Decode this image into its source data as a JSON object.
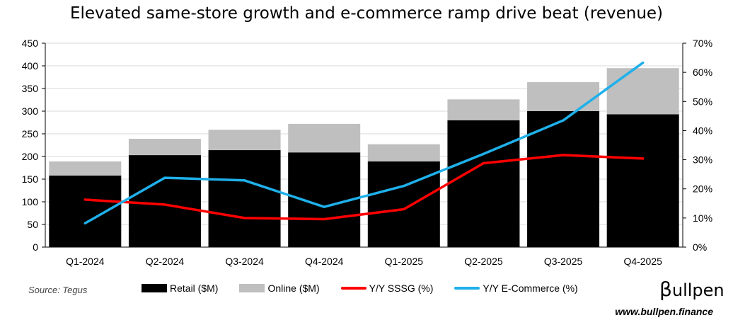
{
  "title": "Elevated same-store growth and e-commerce ramp drive beat (revenue)",
  "source": "Source: Tegus",
  "brand": {
    "logo_letter": "β",
    "logo_rest": "ullpen",
    "website": "www.bullpen.finance"
  },
  "chart_data": {
    "type": "bar",
    "stacked": true,
    "categories": [
      "Q1-2024",
      "Q2-2024",
      "Q3-2024",
      "Q4-2024",
      "Q1-2025",
      "Q2-2025",
      "Q3-2025",
      "Q4-2025"
    ],
    "series": [
      {
        "name": "Retail ($M)",
        "kind": "bar",
        "axis": "left",
        "color": "#000000",
        "values": [
          158,
          203,
          214,
          209,
          189,
          280,
          300,
          293
        ]
      },
      {
        "name": "Online ($M)",
        "kind": "bar",
        "axis": "left",
        "color": "#bfbfbf",
        "values": [
          31,
          36,
          45,
          63,
          38,
          46,
          64,
          102
        ]
      },
      {
        "name": "Y/Y SSSG (%)",
        "kind": "line",
        "axis": "right",
        "color": "#ff0000",
        "values": [
          16.3,
          14.6,
          10.0,
          9.6,
          13.0,
          28.8,
          31.6,
          30.4
        ]
      },
      {
        "name": "Y/Y E-Commerce (%)",
        "kind": "line",
        "axis": "right",
        "color": "#1fb0ea",
        "values": [
          8.2,
          23.8,
          22.9,
          13.8,
          21.0,
          32.0,
          43.5,
          63.3
        ]
      }
    ],
    "ylim_left": [
      0,
      450
    ],
    "yticks_left": [
      "0",
      "50",
      "100",
      "150",
      "200",
      "250",
      "300",
      "350",
      "400",
      "450"
    ],
    "ylim_right": [
      0,
      70
    ],
    "yticks_right": [
      "0%",
      "10%",
      "20%",
      "30%",
      "40%",
      "50%",
      "60%",
      "70%"
    ],
    "grid": "horizontal",
    "legend": "bottom"
  }
}
